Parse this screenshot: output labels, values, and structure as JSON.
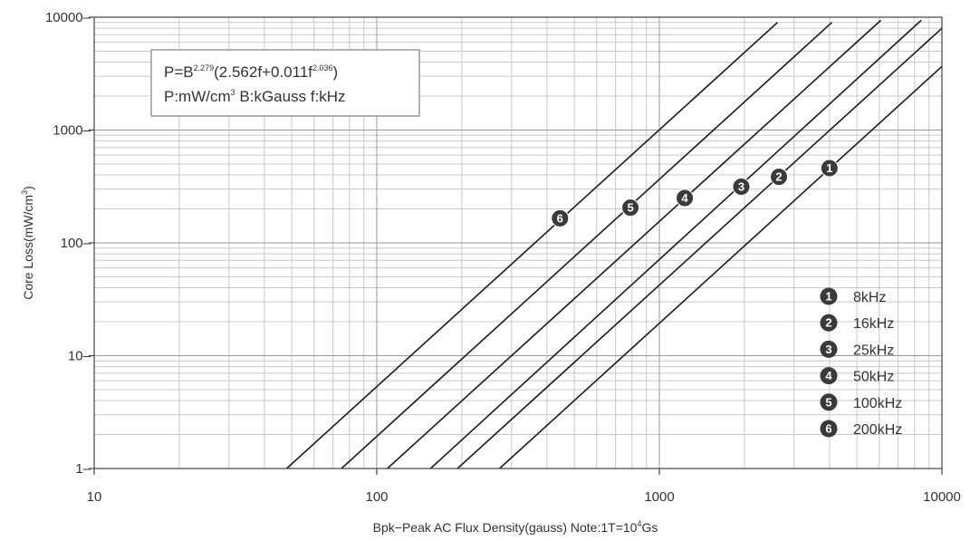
{
  "chart_data": {
    "type": "line",
    "x_scale": "log",
    "y_scale": "log",
    "xlim": [
      10,
      10000
    ],
    "ylim": [
      1,
      10000
    ],
    "grid": true,
    "x_ticks": [
      "10",
      "100",
      "1000",
      "10000"
    ],
    "y_ticks": [
      "1",
      "10",
      "100",
      "1000",
      "10000"
    ],
    "xlabel": {
      "prefix": "Bpk−Peak AC Flux Density(gauss) Note:1T=10",
      "sup": "4",
      "suffix": "Gs"
    },
    "ylabel": {
      "prefix": "Core Loss(mW/cm",
      "sup": "3",
      "suffix": ")"
    },
    "formula": {
      "line1": {
        "a": "P=B",
        "a_sup": "2.279",
        "b": "(2.562f+0.011f",
        "b_sup": "2.036",
        "c": ")"
      },
      "line2": {
        "a": "P:mW/cm",
        "a_sup": "3",
        "b": " B:kGauss  f:kHz"
      }
    },
    "series": [
      {
        "marker": "1",
        "name": "8kHz",
        "x": [
          272,
          10000
        ],
        "y": [
          1,
          3663
        ],
        "marker_at": [
          4000,
          460
        ]
      },
      {
        "marker": "2",
        "name": "16kHz",
        "x": [
          193,
          10000
        ],
        "y": [
          1,
          7980
        ],
        "marker_at": [
          2650,
          385
        ]
      },
      {
        "marker": "3",
        "name": "25kHz",
        "x": [
          155,
          8450
        ],
        "y": [
          1,
          9400
        ],
        "marker_at": [
          1950,
          315
        ]
      },
      {
        "marker": "4",
        "name": "50kHz",
        "x": [
          109,
          6080
        ],
        "y": [
          1,
          9400
        ],
        "marker_at": [
          1230,
          250
        ]
      },
      {
        "marker": "5",
        "name": "100kHz",
        "x": [
          75,
          4080
        ],
        "y": [
          1,
          9000
        ],
        "marker_at": [
          790,
          205
        ]
      },
      {
        "marker": "6",
        "name": "200kHz",
        "x": [
          48,
          2620
        ],
        "y": [
          1,
          9000
        ],
        "marker_at": [
          445,
          165
        ]
      }
    ],
    "legend_position": "bottom-right"
  }
}
